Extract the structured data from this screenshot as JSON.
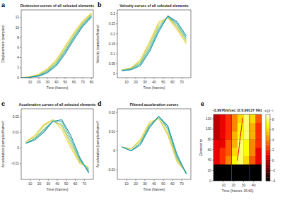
{
  "chart_data": [
    {
      "type": "line",
      "panel": "a",
      "title": "Distension curves of all selected elements",
      "xlabel": "Time (frames)",
      "ylabel": "Displacement (samples)",
      "x": [
        0,
        10,
        20,
        30,
        40,
        50,
        60,
        70,
        80
      ],
      "xlim": [
        0,
        82
      ],
      "ylim": [
        0,
        13.5
      ],
      "xticks": [
        10,
        20,
        30,
        40,
        50,
        60,
        70,
        80
      ],
      "yticks": [
        0,
        2,
        4,
        6,
        8,
        10,
        12
      ],
      "series": [
        {
          "color": "#f2d13a",
          "values": [
            0,
            0.2,
            0.7,
            1.8,
            3.6,
            6.3,
            9.0,
            11.3,
            12.9
          ]
        },
        {
          "color": "#c9d35a",
          "values": [
            0,
            0.2,
            0.6,
            1.6,
            3.3,
            5.9,
            8.7,
            11.0,
            12.7
          ]
        },
        {
          "color": "#8fc77f",
          "values": [
            0,
            0.1,
            0.5,
            1.4,
            3.0,
            5.5,
            8.3,
            10.8,
            12.5
          ]
        },
        {
          "color": "#4fb3a3",
          "values": [
            0,
            0.1,
            0.4,
            1.2,
            2.7,
            5.2,
            8.0,
            10.5,
            12.3
          ]
        },
        {
          "color": "#1e97b4",
          "values": [
            0,
            0.1,
            0.3,
            1.0,
            2.4,
            4.8,
            7.6,
            10.2,
            12.1
          ]
        }
      ]
    },
    {
      "type": "line",
      "panel": "b",
      "title": "Velocity curves of all selected elements",
      "xlabel": "Time (frames)",
      "ylabel": "Velocity (samples/frame)",
      "x": [
        5,
        15,
        25,
        35,
        45,
        55,
        65,
        75
      ],
      "xlim": [
        0,
        80
      ],
      "ylim": [
        -0.02,
        0.32
      ],
      "xticks": [
        10,
        20,
        30,
        40,
        50,
        60,
        70
      ],
      "yticks": [
        0,
        0.05,
        0.1,
        0.15,
        0.2,
        0.25,
        0.3
      ],
      "series": [
        {
          "color": "#f2d13a",
          "values": [
            0.02,
            0.03,
            0.07,
            0.16,
            0.26,
            0.28,
            0.22,
            0.15
          ]
        },
        {
          "color": "#c9d35a",
          "values": [
            0.019,
            0.028,
            0.062,
            0.148,
            0.248,
            0.284,
            0.23,
            0.16
          ]
        },
        {
          "color": "#8fc77f",
          "values": [
            0.018,
            0.025,
            0.055,
            0.135,
            0.235,
            0.287,
            0.24,
            0.17
          ]
        },
        {
          "color": "#4fb3a3",
          "values": [
            0.016,
            0.022,
            0.047,
            0.122,
            0.222,
            0.289,
            0.25,
            0.18
          ]
        },
        {
          "color": "#1e97b4",
          "values": [
            0.015,
            0.02,
            0.04,
            0.11,
            0.21,
            0.29,
            0.26,
            0.19
          ]
        }
      ]
    },
    {
      "type": "line",
      "panel": "c",
      "title": "Acceleration curves of all selected elements",
      "xlabel": "Time (frames)",
      "ylabel": "Acceleration (samples/frame²)",
      "x": [
        5,
        15,
        25,
        35,
        45,
        55,
        65,
        75
      ],
      "xlim": [
        0,
        80
      ],
      "ylim": [
        -0.02,
        0.025
      ],
      "xticks": [
        10,
        20,
        30,
        40,
        50,
        60,
        70
      ],
      "yticks": [
        -0.01,
        0,
        0.01,
        0.02
      ],
      "series": [
        {
          "color": "#f2d13a",
          "values": [
            0.004,
            0.008,
            0.015,
            0.018,
            0.012,
            0,
            -0.01,
            -0.012
          ]
        },
        {
          "color": "#c9d35a",
          "values": [
            0.004,
            0.007,
            0.014,
            0.018,
            0.014,
            0.002,
            -0.009,
            -0.013
          ]
        },
        {
          "color": "#8fc77f",
          "values": [
            0.003,
            0.006,
            0.012,
            0.017,
            0.015,
            0.004,
            -0.008,
            -0.014
          ]
        },
        {
          "color": "#4fb3a3",
          "values": [
            0.003,
            0.006,
            0.011,
            0.017,
            0.017,
            0.006,
            -0.007,
            -0.015
          ]
        },
        {
          "color": "#1e97b4",
          "values": [
            0.003,
            0.005,
            0.01,
            0.017,
            0.018,
            0.008,
            -0.006,
            -0.016
          ]
        }
      ]
    },
    {
      "type": "line",
      "panel": "d",
      "title": "Filtered acceleration curves",
      "xlabel": "Time (frames)",
      "ylabel": "Acceleration (samples/frame²)",
      "x": [
        5,
        15,
        25,
        35,
        45,
        55,
        65,
        75
      ],
      "xlim": [
        0,
        80
      ],
      "ylim": [
        -0.015,
        0.022
      ],
      "xticks": [
        10,
        20,
        30,
        40,
        50,
        60,
        70
      ],
      "yticks": [
        -0.01,
        0,
        0.01,
        0.02
      ],
      "series": [
        {
          "color": "#f2d13a",
          "values": [
            0.002,
            0.001,
            0.006,
            0.015,
            0.017,
            0.008,
            -0.006,
            -0.011
          ]
        },
        {
          "color": "#c9d35a",
          "values": [
            0.002,
            0.001,
            0.005,
            0.014,
            0.017,
            0.009,
            -0.005,
            -0.011
          ]
        },
        {
          "color": "#8fc77f",
          "values": [
            0.002,
            0,
            0.004,
            0.013,
            0.018,
            0.011,
            -0.004,
            -0.012
          ]
        },
        {
          "color": "#4fb3a3",
          "values": [
            0.002,
            0,
            0.004,
            0.013,
            0.018,
            0.012,
            -0.003,
            -0.012
          ]
        },
        {
          "color": "#1e97b4",
          "values": [
            0.002,
            0,
            0.003,
            0.012,
            0.018,
            0.013,
            -0.002,
            -0.012
          ]
        }
      ]
    },
    {
      "type": "heatmap",
      "panel": "e",
      "title": "-3.9976m/sec   r2:0.99127   6Hz",
      "xlabel": "Time (frames 15:60)",
      "ylabel": "Element nr",
      "x": [
        3,
        9,
        15,
        21,
        27,
        33,
        39,
        45
      ],
      "y": [
        8,
        24,
        40,
        56,
        72,
        88,
        104,
        120
      ],
      "xlim": [
        0,
        48
      ],
      "ylim": [
        0,
        128
      ],
      "xticks": [
        10,
        20,
        30,
        40
      ],
      "yticks": [
        0,
        20,
        40,
        60,
        80,
        100,
        120
      ],
      "values": [
        [
          -4,
          -4,
          -4,
          -4,
          -4,
          -4,
          -4,
          -4
        ],
        [
          -4,
          -4,
          -4,
          -4,
          -4,
          -4,
          -4,
          -4
        ],
        [
          1,
          2,
          4,
          7,
          8,
          6,
          3,
          1
        ],
        [
          1,
          2,
          3,
          6,
          8,
          7,
          4,
          1
        ],
        [
          1,
          1,
          3,
          5,
          8,
          7,
          4,
          2
        ],
        [
          0,
          1,
          2,
          5,
          7,
          8,
          5,
          2
        ],
        [
          0,
          1,
          2,
          4,
          7,
          8,
          5,
          2
        ],
        [
          0,
          1,
          2,
          4,
          6,
          8,
          6,
          3
        ]
      ],
      "peak_x": [
        24,
        25,
        26,
        27,
        28,
        29
      ],
      "peak_y": [
        40,
        56,
        72,
        88,
        104,
        120
      ],
      "window_frames": [
        18,
        36
      ],
      "colorbar_lim": [
        -4,
        9
      ],
      "colorbar_ticks": [
        -4,
        -2,
        0,
        2,
        4,
        6,
        8
      ],
      "colorbar_label": "×10⁻³"
    }
  ]
}
